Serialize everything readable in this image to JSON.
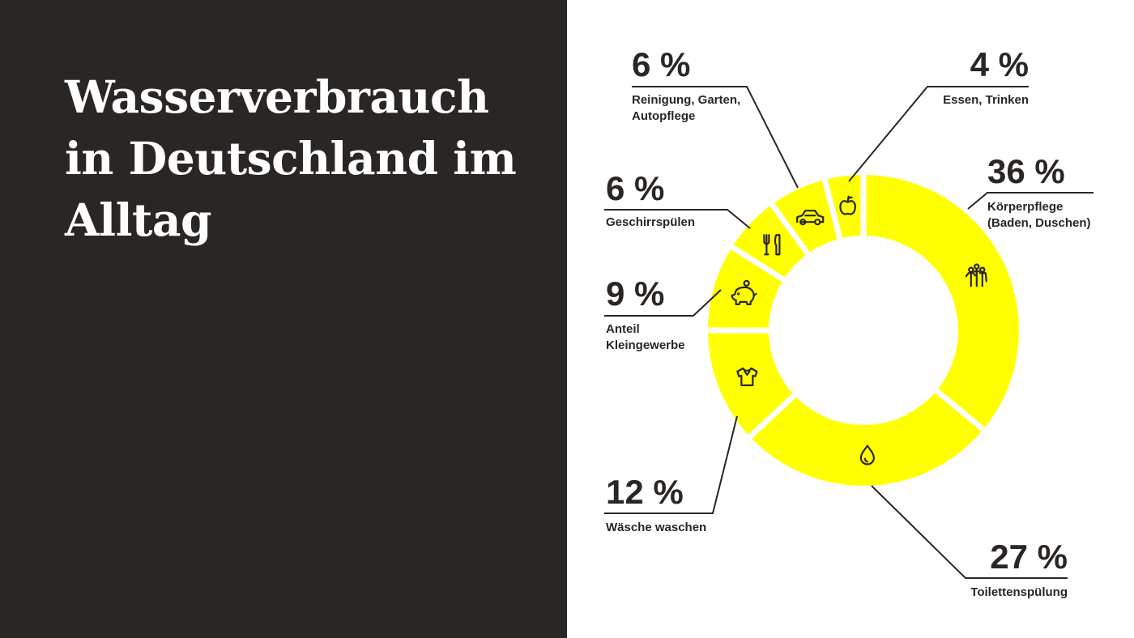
{
  "title": "Wasserverbrauch in Deutschland im Alltag",
  "colors": {
    "dark_panel": "#2a2624",
    "slice": "#ffff00",
    "text_dark": "#2a2624",
    "text_light": "#ffffff"
  },
  "chart_data": {
    "type": "pie",
    "donut": true,
    "title": "",
    "unit": "%",
    "slices": [
      {
        "label_lines": [
          "Körperpflege",
          "(Baden, Duschen)"
        ],
        "value": 36,
        "pct_text": "36 %",
        "icon": "family-icon"
      },
      {
        "label_lines": [
          "Toilettenspülung"
        ],
        "value": 27,
        "pct_text": "27 %",
        "icon": "water-drop-icon"
      },
      {
        "label_lines": [
          "Wäsche waschen"
        ],
        "value": 12,
        "pct_text": "12 %",
        "icon": "shirt-icon"
      },
      {
        "label_lines": [
          "Anteil",
          "Kleingewerbe"
        ],
        "value": 9,
        "pct_text": "9 %",
        "icon": "piggy-bank-icon"
      },
      {
        "label_lines": [
          "Geschirrspülen"
        ],
        "value": 6,
        "pct_text": "6 %",
        "icon": "cutlery-icon"
      },
      {
        "label_lines": [
          "Reinigung, Garten,",
          "Autopflege"
        ],
        "value": 6,
        "pct_text": "6 %",
        "icon": "car-icon"
      },
      {
        "label_lines": [
          "Essen, Trinken"
        ],
        "value": 4,
        "pct_text": "4 %",
        "icon": "apple-icon"
      }
    ]
  }
}
